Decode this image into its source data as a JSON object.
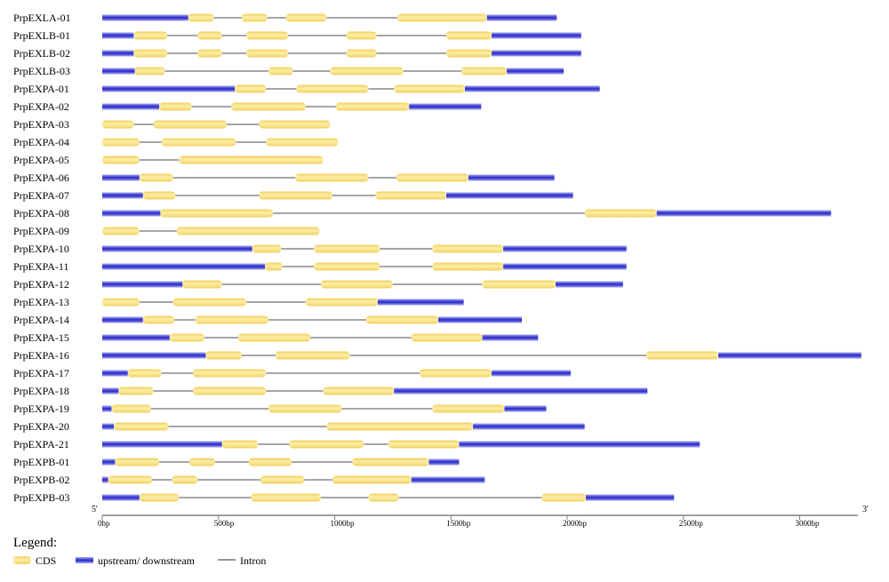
{
  "axis": {
    "five_prime": "5'",
    "three_prime": "3'",
    "ticks": [
      {
        "value": 0,
        "label": "0bp"
      },
      {
        "value": 500,
        "label": "500bp"
      },
      {
        "value": 1000,
        "label": "1000bp"
      },
      {
        "value": 1500,
        "label": "1500bp"
      },
      {
        "value": 2000,
        "label": "2000bp"
      },
      {
        "value": 2500,
        "label": "2500bp"
      },
      {
        "value": 3000,
        "label": "3000bp"
      }
    ]
  },
  "legend": {
    "title": "Legend:",
    "cds": "CDS",
    "utr": "upstream/ downstream",
    "intron": "Intron"
  },
  "colors": {
    "cds": "#f2d060",
    "cds_light": "#fcefa8",
    "utr": "#2525c8",
    "utr_light": "#a8a8f0",
    "intron": "#707070"
  },
  "genes": [
    {
      "name": "PrpEXLA-01",
      "length": 1955,
      "utr": [
        [
          0,
          370
        ],
        [
          1655,
          1955
        ]
      ],
      "cds": [
        [
          370,
          480
        ],
        [
          600,
          710
        ],
        [
          790,
          965
        ],
        [
          1270,
          1655
        ]
      ]
    },
    {
      "name": "PrpEXLB-01",
      "length": 2060,
      "utr": [
        [
          0,
          135
        ],
        [
          1675,
          2060
        ]
      ],
      "cds": [
        [
          135,
          280
        ],
        [
          410,
          515
        ],
        [
          620,
          800
        ],
        [
          1050,
          1180
        ],
        [
          1480,
          1675
        ]
      ]
    },
    {
      "name": "PrpEXLB-02",
      "length": 2060,
      "utr": [
        [
          0,
          135
        ],
        [
          1675,
          2060
        ]
      ],
      "cds": [
        [
          135,
          280
        ],
        [
          410,
          515
        ],
        [
          620,
          800
        ],
        [
          1050,
          1180
        ],
        [
          1480,
          1675
        ]
      ]
    },
    {
      "name": "PrpEXLB-03",
      "length": 1985,
      "utr": [
        [
          0,
          140
        ],
        [
          1740,
          1985
        ]
      ],
      "cds": [
        [
          140,
          270
        ],
        [
          715,
          820
        ],
        [
          980,
          1295
        ],
        [
          1545,
          1740
        ]
      ]
    },
    {
      "name": "PrpEXPA-01",
      "length": 2140,
      "utr": [
        [
          0,
          570
        ],
        [
          1560,
          2140
        ]
      ],
      "cds": [
        [
          570,
          705
        ],
        [
          835,
          1145
        ],
        [
          1255,
          1560
        ]
      ]
    },
    {
      "name": "PrpEXPA-02",
      "length": 1630,
      "utr": [
        [
          0,
          245
        ],
        [
          1320,
          1630
        ]
      ],
      "cds": [
        [
          245,
          385
        ],
        [
          555,
          875
        ],
        [
          1005,
          1320
        ]
      ]
    },
    {
      "name": "PrpEXPA-03",
      "length": 980,
      "utr": [],
      "cds": [
        [
          0,
          135
        ],
        [
          220,
          535
        ],
        [
          675,
          980
        ]
      ]
    },
    {
      "name": "PrpEXPA-04",
      "length": 1015,
      "utr": [],
      "cds": [
        [
          0,
          160
        ],
        [
          255,
          575
        ],
        [
          705,
          1015
        ]
      ]
    },
    {
      "name": "PrpEXPA-05",
      "length": 950,
      "utr": [],
      "cds": [
        [
          0,
          160
        ],
        [
          330,
          950
        ]
      ]
    },
    {
      "name": "PrpEXPA-06",
      "length": 1945,
      "utr": [
        [
          0,
          160
        ],
        [
          1575,
          1945
        ]
      ],
      "cds": [
        [
          160,
          305
        ],
        [
          830,
          1145
        ],
        [
          1265,
          1575
        ]
      ]
    },
    {
      "name": "PrpEXPA-07",
      "length": 2025,
      "utr": [
        [
          0,
          175
        ],
        [
          1480,
          2025
        ]
      ],
      "cds": [
        [
          175,
          315
        ],
        [
          675,
          990
        ],
        [
          1175,
          1480
        ]
      ]
    },
    {
      "name": "PrpEXPA-08",
      "length": 3135,
      "utr": [
        [
          0,
          250
        ],
        [
          2385,
          3135
        ]
      ],
      "cds": [
        [
          250,
          735
        ],
        [
          2075,
          2385
        ]
      ]
    },
    {
      "name": "PrpEXPA-09",
      "length": 935,
      "utr": [],
      "cds": [
        [
          0,
          160
        ],
        [
          320,
          935
        ]
      ]
    },
    {
      "name": "PrpEXPA-10",
      "length": 2255,
      "utr": [
        [
          0,
          645
        ],
        [
          1725,
          2255
        ]
      ],
      "cds": [
        [
          645,
          770
        ],
        [
          910,
          1195
        ],
        [
          1420,
          1725
        ]
      ]
    },
    {
      "name": "PrpEXPA-11",
      "length": 2255,
      "utr": [
        [
          0,
          700
        ],
        [
          1725,
          2255
        ]
      ],
      "cds": [
        [
          700,
          775
        ],
        [
          910,
          1195
        ],
        [
          1420,
          1725
        ]
      ]
    },
    {
      "name": "PrpEXPA-12",
      "length": 2240,
      "utr": [
        [
          0,
          345
        ],
        [
          1950,
          2240
        ]
      ],
      "cds": [
        [
          345,
          515
        ],
        [
          940,
          1250
        ],
        [
          1635,
          1950
        ]
      ]
    },
    {
      "name": "PrpEXPA-13",
      "length": 1555,
      "utr": [
        [
          1185,
          1555
        ]
      ],
      "cds": [
        [
          0,
          160
        ],
        [
          305,
          620
        ],
        [
          875,
          1185
        ]
      ]
    },
    {
      "name": "PrpEXPA-14",
      "length": 1805,
      "utr": [
        [
          0,
          175
        ],
        [
          1445,
          1805
        ]
      ],
      "cds": [
        [
          175,
          310
        ],
        [
          400,
          715
        ],
        [
          1135,
          1445
        ]
      ]
    },
    {
      "name": "PrpEXPA-15",
      "length": 1875,
      "utr": [
        [
          0,
          290
        ],
        [
          1635,
          1875
        ]
      ],
      "cds": [
        [
          290,
          440
        ],
        [
          585,
          895
        ],
        [
          1330,
          1635
        ]
      ]
    },
    {
      "name": "PrpEXPA-16",
      "length": 3265,
      "utr": [
        [
          0,
          445
        ],
        [
          2650,
          3265
        ]
      ],
      "cds": [
        [
          445,
          600
        ],
        [
          745,
          1065
        ],
        [
          2340,
          2650
        ]
      ]
    },
    {
      "name": "PrpEXPA-17",
      "length": 2015,
      "utr": [
        [
          0,
          110
        ],
        [
          1675,
          2015
        ]
      ],
      "cds": [
        [
          110,
          255
        ],
        [
          390,
          705
        ],
        [
          1365,
          1675
        ]
      ]
    },
    {
      "name": "PrpEXPA-18",
      "length": 2345,
      "utr": [
        [
          0,
          70
        ],
        [
          1255,
          2345
        ]
      ],
      "cds": [
        [
          70,
          220
        ],
        [
          390,
          705
        ],
        [
          950,
          1255
        ]
      ]
    },
    {
      "name": "PrpEXPA-19",
      "length": 1910,
      "utr": [
        [
          0,
          40
        ],
        [
          1730,
          1910
        ]
      ],
      "cds": [
        [
          40,
          210
        ],
        [
          715,
          1030
        ],
        [
          1420,
          1730
        ]
      ]
    },
    {
      "name": "PrpEXPA-20",
      "length": 2075,
      "utr": [
        [
          0,
          50
        ],
        [
          1595,
          2075
        ]
      ],
      "cds": [
        [
          50,
          285
        ],
        [
          965,
          1595
        ]
      ]
    },
    {
      "name": "PrpEXPA-21",
      "length": 2570,
      "utr": [
        [
          0,
          515
        ],
        [
          1535,
          2570
        ]
      ],
      "cds": [
        [
          515,
          670
        ],
        [
          805,
          1125
        ],
        [
          1230,
          1535
        ]
      ]
    },
    {
      "name": "PrpEXPB-01",
      "length": 1535,
      "utr": [
        [
          0,
          55
        ],
        [
          1405,
          1535
        ]
      ],
      "cds": [
        [
          55,
          245
        ],
        [
          375,
          485
        ],
        [
          630,
          815
        ],
        [
          1075,
          1405
        ]
      ]
    },
    {
      "name": "PrpEXPB-02",
      "length": 1645,
      "utr": [
        [
          0,
          25
        ],
        [
          1330,
          1645
        ]
      ],
      "cds": [
        [
          25,
          215
        ],
        [
          300,
          410
        ],
        [
          680,
          870
        ],
        [
          990,
          1330
        ]
      ]
    },
    {
      "name": "PrpEXPB-03",
      "length": 2460,
      "utr": [
        [
          0,
          160
        ],
        [
          2080,
          2460
        ]
      ],
      "cds": [
        [
          160,
          330
        ],
        [
          640,
          940
        ],
        [
          1145,
          1275
        ],
        [
          1890,
          2080
        ]
      ]
    }
  ]
}
